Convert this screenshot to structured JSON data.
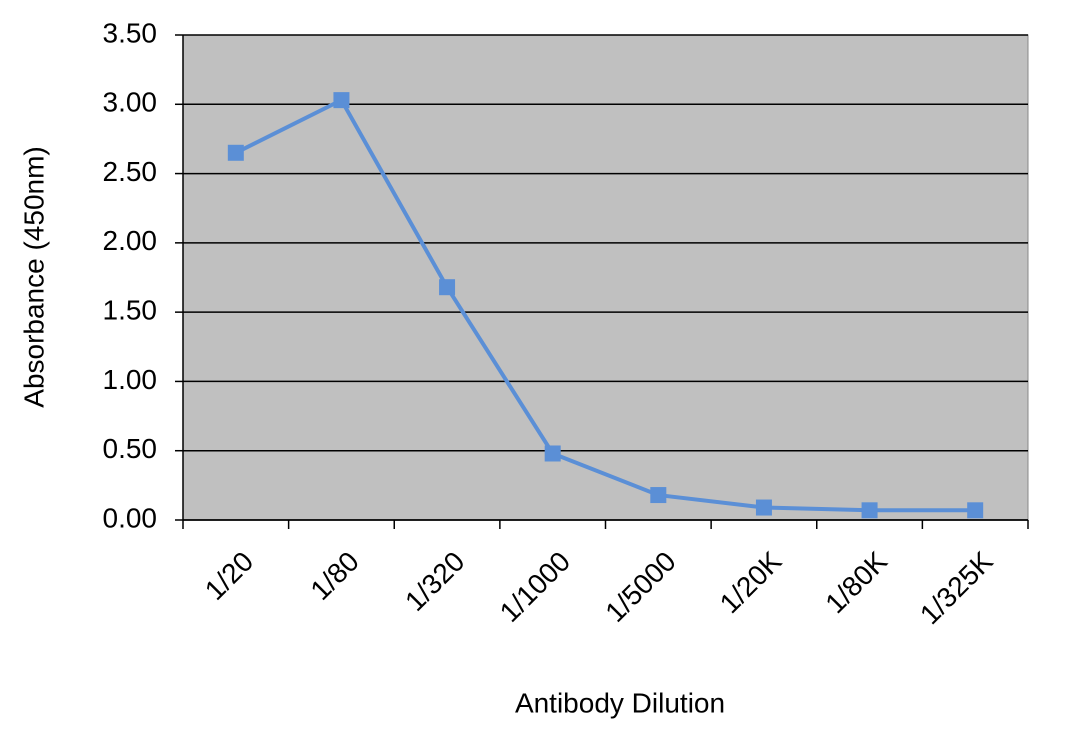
{
  "chart_data": {
    "type": "line",
    "x_label": "Antibody Dilution",
    "y_label": "Absorbance (450nm)",
    "categories": [
      "1/20",
      "1/80",
      "1/320",
      "1/1000",
      "1/5000",
      "1/20K",
      "1/80K",
      "1/325K"
    ],
    "series": [
      {
        "color": "#5b8fd6",
        "values": [
          2.65,
          3.03,
          1.68,
          0.48,
          0.18,
          0.09,
          0.07,
          0.07
        ]
      }
    ],
    "ylim": [
      0,
      3.5
    ],
    "yticks": [
      {
        "value": 0,
        "label": "0.00"
      },
      {
        "value": 0.5,
        "label": "0.50"
      },
      {
        "value": 1,
        "label": "1.00"
      },
      {
        "value": 1.5,
        "label": "1.50"
      },
      {
        "value": 2,
        "label": "2.00"
      },
      {
        "value": 2.5,
        "label": "2.50"
      },
      {
        "value": 3,
        "label": "3.00"
      },
      {
        "value": 3.5,
        "label": "3.50"
      }
    ],
    "grid": true,
    "plot_background": "#c0c0c0"
  }
}
